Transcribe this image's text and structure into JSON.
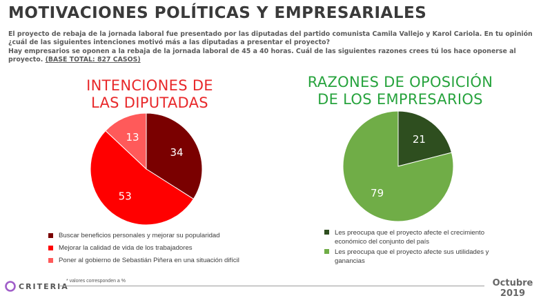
{
  "header": {
    "title": "MOTIVACIONES POLÍTICAS Y EMPRESARIALES",
    "intro_line1": "El proyecto de rebaja de la jornada laboral fue presentado por las diputadas del partido comunista Camila Vallejo y Karol Cariola. En tu opinión ¿cuál de las siguientes intenciones motivó más a las diputadas a presentar el proyecto?",
    "intro_line2": "Hay empresarios se oponen a la rebaja de la jornada laboral de 45 a 40 horas. Cuál de las siguientes razones crees tú los hace oponerse al proyecto.",
    "base": "(BASE TOTAL: 827 CASOS)"
  },
  "chart_data": [
    {
      "type": "pie",
      "title_line1": "INTENCIONES DE",
      "title_line2": "LAS DIPUTADAS",
      "slices": [
        {
          "label": "Buscar beneficios personales y mejorar su popularidad",
          "value": 34,
          "color": "#7a0000"
        },
        {
          "label": "Mejorar la calidad de vida de los trabajadores",
          "value": 53,
          "color": "#ff0000"
        },
        {
          "label": "Poner al gobierno de Sebastián Piñera en una situación difícil",
          "value": 13,
          "color": "#ff5a5a"
        }
      ]
    },
    {
      "type": "pie",
      "title_line1": "RAZONES DE OPOSICIÓN",
      "title_line2": "DE LOS EMPRESARIOS",
      "slices": [
        {
          "label": "Les preocupa que el proyecto afecte el crecimiento económico del conjunto del país",
          "value": 21,
          "color": "#2e4e1f"
        },
        {
          "label": "Les preocupa que el proyecto afecte sus utilidades y ganancias",
          "value": 79,
          "color": "#70ad47"
        }
      ]
    }
  ],
  "footer": {
    "brand": "CRITERIA",
    "footnote": "* valores corresponden a %",
    "date_month": "Octubre",
    "date_year": "2019"
  }
}
